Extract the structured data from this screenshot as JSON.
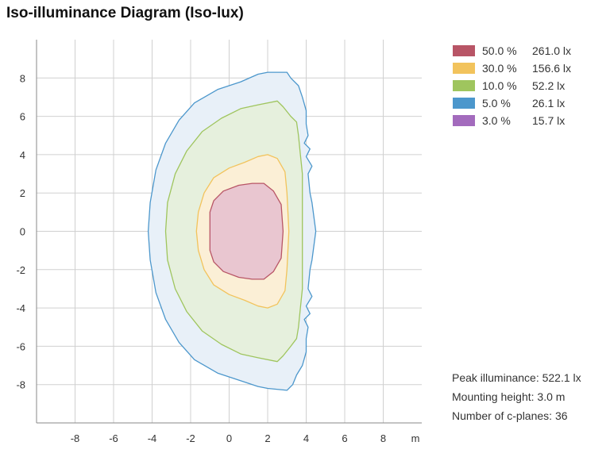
{
  "title": "Iso-illuminance Diagram (Iso-lux)",
  "legend": [
    {
      "percent": "50.0 %",
      "lux": "261.0 lx",
      "color": "#b85566"
    },
    {
      "percent": "30.0 %",
      "lux": "156.6 lx",
      "color": "#f2c35c"
    },
    {
      "percent": "10.0 %",
      "lux": "52.2 lx",
      "color": "#9fc55e"
    },
    {
      "percent": "5.0 %",
      "lux": "26.1 lx",
      "color": "#4c97cc"
    },
    {
      "percent": "3.0 %",
      "lux": "15.7 lx",
      "color": "#a36bbd"
    }
  ],
  "info": {
    "peak": "Peak illuminance: 522.1 lx",
    "mounting": "Mounting height: 3.0 m",
    "cplanes": "Number of c-planes: 36"
  },
  "chart_data": {
    "type": "area",
    "title": "Iso-illuminance Diagram (Iso-lux)",
    "xlabel": "m",
    "ylabel": "",
    "xlim": [
      -10,
      10
    ],
    "ylim": [
      -10,
      10
    ],
    "xticks": [
      -8,
      -6,
      -4,
      -2,
      0,
      2,
      4,
      6,
      8
    ],
    "yticks": [
      -8,
      -6,
      -4,
      -2,
      0,
      2,
      4,
      6,
      8
    ],
    "grid": true,
    "legend_position": "top-right",
    "series": [
      {
        "name": "5.0 %",
        "color": "#4c97cc",
        "fill": "#e8f0f8",
        "points": [
          [
            -4.2,
            0
          ],
          [
            -4.1,
            1.5
          ],
          [
            -3.8,
            3.2
          ],
          [
            -3.3,
            4.6
          ],
          [
            -2.6,
            5.8
          ],
          [
            -1.8,
            6.7
          ],
          [
            -0.6,
            7.4
          ],
          [
            0.6,
            7.8
          ],
          [
            1.5,
            8.2
          ],
          [
            2.0,
            8.3
          ],
          [
            3.0,
            8.3
          ],
          [
            3.2,
            8.0
          ],
          [
            3.6,
            7.6
          ],
          [
            3.8,
            7.0
          ],
          [
            4.0,
            6.3
          ],
          [
            4.0,
            5.6
          ],
          [
            4.1,
            5.0
          ],
          [
            3.9,
            4.6
          ],
          [
            4.2,
            4.3
          ],
          [
            4.0,
            3.9
          ],
          [
            4.3,
            3.4
          ],
          [
            4.1,
            3.0
          ],
          [
            4.2,
            2.0
          ],
          [
            4.3,
            1.5
          ],
          [
            4.5,
            0
          ],
          [
            4.3,
            -1.5
          ],
          [
            4.2,
            -2.0
          ],
          [
            4.1,
            -3.0
          ],
          [
            4.3,
            -3.4
          ],
          [
            4.0,
            -3.9
          ],
          [
            4.2,
            -4.3
          ],
          [
            3.9,
            -4.6
          ],
          [
            4.1,
            -5.0
          ],
          [
            4.0,
            -5.6
          ],
          [
            4.0,
            -6.3
          ],
          [
            3.8,
            -7.0
          ],
          [
            3.5,
            -7.5
          ],
          [
            3.3,
            -8.0
          ],
          [
            3.0,
            -8.3
          ],
          [
            2.0,
            -8.2
          ],
          [
            1.5,
            -8.1
          ],
          [
            0.6,
            -7.8
          ],
          [
            -0.6,
            -7.4
          ],
          [
            -1.8,
            -6.7
          ],
          [
            -2.6,
            -5.8
          ],
          [
            -3.3,
            -4.6
          ],
          [
            -3.8,
            -3.2
          ],
          [
            -4.1,
            -1.5
          ]
        ]
      },
      {
        "name": "10.0 %",
        "color": "#9fc55e",
        "fill": "#e6f0dd",
        "points": [
          [
            -3.3,
            0
          ],
          [
            -3.2,
            1.5
          ],
          [
            -2.8,
            3.0
          ],
          [
            -2.2,
            4.2
          ],
          [
            -1.4,
            5.2
          ],
          [
            -0.4,
            5.9
          ],
          [
            0.6,
            6.4
          ],
          [
            1.5,
            6.6
          ],
          [
            2.5,
            6.8
          ],
          [
            2.8,
            6.5
          ],
          [
            3.2,
            6.0
          ],
          [
            3.5,
            5.7
          ],
          [
            3.6,
            5.0
          ],
          [
            3.7,
            4.0
          ],
          [
            3.8,
            3.0
          ],
          [
            3.8,
            1.5
          ],
          [
            3.8,
            0
          ],
          [
            3.8,
            -1.5
          ],
          [
            3.8,
            -3.0
          ],
          [
            3.7,
            -4.0
          ],
          [
            3.6,
            -5.0
          ],
          [
            3.5,
            -5.6
          ],
          [
            3.2,
            -6.0
          ],
          [
            2.8,
            -6.5
          ],
          [
            2.5,
            -6.8
          ],
          [
            1.5,
            -6.6
          ],
          [
            0.6,
            -6.4
          ],
          [
            -0.4,
            -5.9
          ],
          [
            -1.4,
            -5.2
          ],
          [
            -2.2,
            -4.2
          ],
          [
            -2.8,
            -3.0
          ],
          [
            -3.2,
            -1.5
          ]
        ]
      },
      {
        "name": "30.0 %",
        "color": "#f2c35c",
        "fill": "#fbefd6",
        "points": [
          [
            -1.7,
            0
          ],
          [
            -1.6,
            1.0
          ],
          [
            -1.3,
            2.0
          ],
          [
            -0.8,
            2.8
          ],
          [
            0.0,
            3.3
          ],
          [
            0.8,
            3.6
          ],
          [
            1.5,
            3.9
          ],
          [
            2.0,
            4.0
          ],
          [
            2.5,
            3.8
          ],
          [
            2.9,
            3.1
          ],
          [
            3.0,
            2.0
          ],
          [
            3.1,
            0
          ],
          [
            3.0,
            -2.0
          ],
          [
            2.9,
            -3.1
          ],
          [
            2.5,
            -3.8
          ],
          [
            2.0,
            -4.0
          ],
          [
            1.5,
            -3.9
          ],
          [
            0.8,
            -3.6
          ],
          [
            0.0,
            -3.3
          ],
          [
            -0.8,
            -2.8
          ],
          [
            -1.3,
            -2.0
          ],
          [
            -1.6,
            -1.0
          ]
        ]
      },
      {
        "name": "50.0 %",
        "color": "#b85566",
        "fill": "#e9c6d0",
        "points": [
          [
            -1.0,
            0
          ],
          [
            -1.0,
            1.0
          ],
          [
            -0.8,
            1.6
          ],
          [
            -0.3,
            2.1
          ],
          [
            0.5,
            2.4
          ],
          [
            1.2,
            2.5
          ],
          [
            1.8,
            2.5
          ],
          [
            2.3,
            2.1
          ],
          [
            2.7,
            1.4
          ],
          [
            2.8,
            0
          ],
          [
            2.7,
            -1.4
          ],
          [
            2.3,
            -2.1
          ],
          [
            1.8,
            -2.5
          ],
          [
            1.2,
            -2.5
          ],
          [
            0.5,
            -2.4
          ],
          [
            -0.3,
            -2.1
          ],
          [
            -0.8,
            -1.6
          ],
          [
            -1.0,
            -1.0
          ]
        ]
      }
    ]
  }
}
